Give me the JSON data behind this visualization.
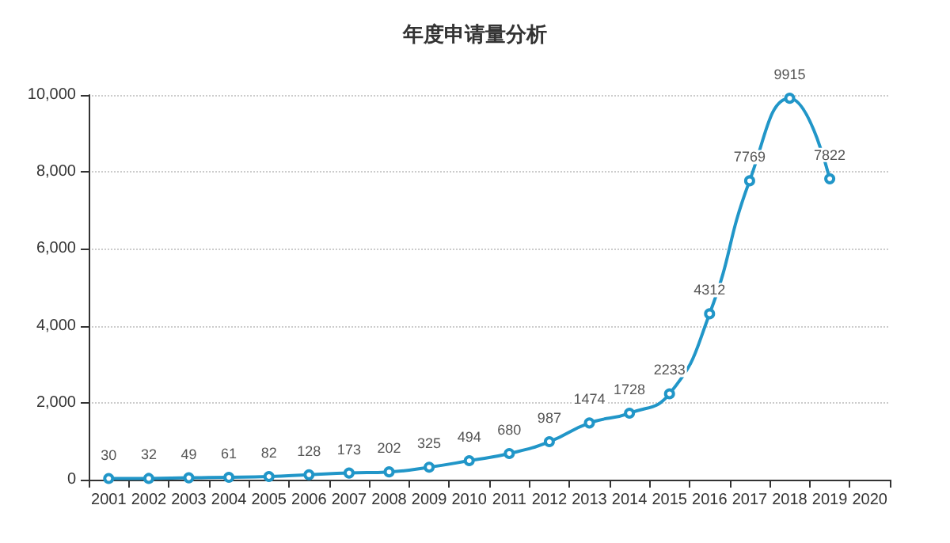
{
  "chart_data": {
    "type": "line",
    "title": "年度申请量分析",
    "categories": [
      "2001",
      "2002",
      "2003",
      "2004",
      "2005",
      "2006",
      "2007",
      "2008",
      "2009",
      "2010",
      "2011",
      "2012",
      "2013",
      "2014",
      "2015",
      "2016",
      "2017",
      "2018",
      "2019",
      "2020"
    ],
    "series": [
      {
        "color": "#2196c8",
        "values": [
          30,
          32,
          49,
          61,
          82,
          128,
          173,
          202,
          325,
          494,
          680,
          987,
          1474,
          1728,
          2233,
          4312,
          7769,
          9915,
          7822,
          null
        ]
      }
    ],
    "ylim": [
      0,
      10000
    ],
    "yticks": [
      0,
      {
        "value": 2000,
        "label": "2,000"
      },
      {
        "value": 4000,
        "label": "4,000"
      },
      {
        "value": 6000,
        "label": "6,000"
      },
      {
        "value": 8000,
        "label": "8,000"
      },
      {
        "value": 10000,
        "label": "10,000"
      }
    ],
    "grid": "y",
    "marker": "circle",
    "line_style": "solid",
    "data_labels": true
  }
}
